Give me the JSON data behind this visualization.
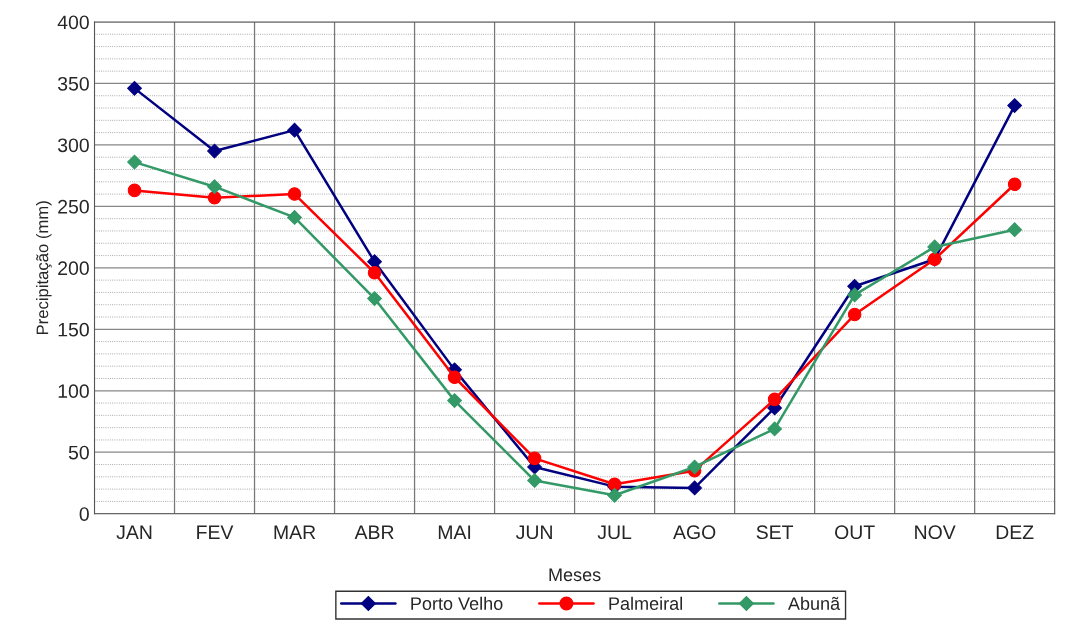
{
  "chart_data": {
    "type": "line",
    "xlabel": "Meses",
    "ylabel": "Precipitação (mm)",
    "categories": [
      "JAN",
      "FEV",
      "MAR",
      "ABR",
      "MAI",
      "JUN",
      "JUL",
      "AGO",
      "SET",
      "OUT",
      "NOV",
      "DEZ"
    ],
    "series": [
      {
        "name": "Porto Velho",
        "color": "#000080",
        "marker": "diamond",
        "values": [
          346,
          295,
          312,
          205,
          117,
          38,
          22,
          21,
          86,
          185,
          207,
          332
        ]
      },
      {
        "name": "Palmeiral",
        "color": "#ff0000",
        "marker": "circle",
        "values": [
          263,
          257,
          260,
          196,
          111,
          45,
          24,
          35,
          93,
          162,
          207,
          268
        ]
      },
      {
        "name": "Abunã",
        "color": "#339966",
        "marker": "diamond",
        "values": [
          286,
          266,
          241,
          175,
          92,
          27,
          15,
          38,
          69,
          178,
          217,
          231
        ]
      }
    ],
    "ylim": [
      0,
      400
    ],
    "yticks": [
      0,
      {
        "value": 10,
        "label": null
      },
      {
        "value": 20,
        "label": null
      },
      {
        "value": 30,
        "label": null
      },
      {
        "value": 40,
        "label": null
      },
      50,
      {
        "value": 60,
        "label": null
      },
      {
        "value": 70,
        "label": null
      },
      {
        "value": 80,
        "label": null
      },
      {
        "value": 90,
        "label": null
      },
      100,
      {
        "value": 110,
        "label": null
      },
      {
        "value": 120,
        "label": null
      },
      {
        "value": 130,
        "label": null
      },
      {
        "value": 140,
        "label": null
      },
      150,
      {
        "value": 160,
        "label": null
      },
      {
        "value": 170,
        "label": null
      },
      {
        "value": 180,
        "label": null
      },
      {
        "value": 190,
        "label": null
      },
      200,
      {
        "value": 210,
        "label": null
      },
      {
        "value": 220,
        "label": null
      },
      {
        "value": 230,
        "label": null
      },
      {
        "value": 240,
        "label": null
      },
      250,
      {
        "value": 260,
        "label": null
      },
      {
        "value": 270,
        "label": null
      },
      {
        "value": 280,
        "label": null
      },
      {
        "value": 290,
        "label": null
      },
      300,
      {
        "value": 310,
        "label": null
      },
      {
        "value": 320,
        "label": null
      },
      {
        "value": 330,
        "label": null
      },
      {
        "value": 340,
        "label": null
      },
      350,
      {
        "value": 360,
        "label": null
      },
      {
        "value": 370,
        "label": null
      },
      {
        "value": 380,
        "label": null
      },
      {
        "value": 390,
        "label": null
      },
      400
    ],
    "grid": true,
    "legend": "bottom",
    "line_style": "solid"
  }
}
